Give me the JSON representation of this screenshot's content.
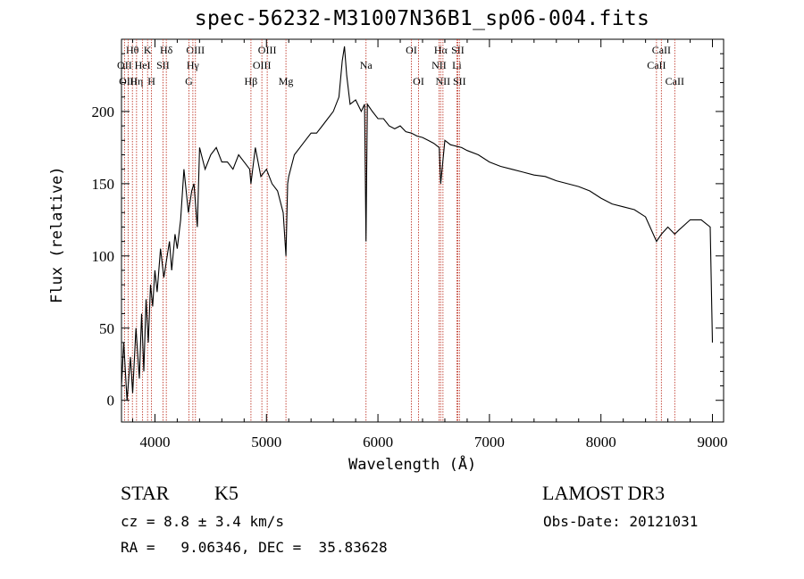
{
  "chart_data": {
    "type": "line",
    "title": "spec-56232-M31007N36B1_sp06-004.fits",
    "xlabel": "Wavelength (Å)",
    "ylabel": "Flux (relative)",
    "xlim": [
      3700,
      9100
    ],
    "ylim": [
      -15,
      250
    ],
    "xticks": [
      4000,
      5000,
      6000,
      7000,
      8000,
      9000
    ],
    "yticks": [
      0,
      50,
      100,
      150,
      200
    ],
    "series": [
      {
        "name": "flux",
        "x": [
          3700,
          3720,
          3750,
          3780,
          3800,
          3830,
          3860,
          3880,
          3900,
          3920,
          3940,
          3960,
          3980,
          4000,
          4020,
          4050,
          4080,
          4100,
          4130,
          4150,
          4180,
          4200,
          4230,
          4260,
          4300,
          4330,
          4350,
          4380,
          4400,
          4450,
          4500,
          4550,
          4600,
          4650,
          4700,
          4750,
          4800,
          4850,
          4861,
          4900,
          4950,
          5000,
          5050,
          5100,
          5150,
          5175,
          5190,
          5200,
          5250,
          5300,
          5350,
          5400,
          5450,
          5500,
          5550,
          5600,
          5650,
          5680,
          5700,
          5720,
          5750,
          5800,
          5850,
          5880,
          5893,
          5905,
          5950,
          6000,
          6050,
          6100,
          6150,
          6200,
          6250,
          6300,
          6350,
          6400,
          6450,
          6500,
          6550,
          6563,
          6600,
          6650,
          6700,
          6750,
          6800,
          6900,
          7000,
          7100,
          7200,
          7300,
          7400,
          7500,
          7600,
          7700,
          7800,
          7900,
          8000,
          8100,
          8200,
          8300,
          8400,
          8498,
          8542,
          8600,
          8662,
          8700,
          8800,
          8900,
          8980,
          9000
        ],
        "y": [
          10,
          40,
          0,
          30,
          5,
          50,
          15,
          60,
          20,
          70,
          40,
          80,
          65,
          90,
          75,
          105,
          85,
          95,
          110,
          90,
          115,
          105,
          125,
          160,
          130,
          145,
          150,
          120,
          175,
          160,
          170,
          175,
          165,
          165,
          160,
          170,
          165,
          160,
          150,
          175,
          155,
          160,
          150,
          145,
          130,
          100,
          150,
          155,
          170,
          175,
          180,
          185,
          185,
          190,
          195,
          200,
          210,
          235,
          245,
          225,
          205,
          208,
          200,
          205,
          110,
          205,
          200,
          195,
          195,
          190,
          188,
          190,
          186,
          185,
          183,
          182,
          180,
          178,
          175,
          150,
          180,
          177,
          176,
          175,
          173,
          170,
          165,
          162,
          160,
          158,
          156,
          155,
          152,
          150,
          148,
          145,
          140,
          136,
          134,
          132,
          127,
          110,
          115,
          120,
          115,
          118,
          125,
          125,
          120,
          40
        ]
      }
    ],
    "lines": [
      {
        "label": "Hθ",
        "wave": 3798,
        "row": 1
      },
      {
        "label": "OII",
        "wave": 3727,
        "row": 2
      },
      {
        "label": "OIII",
        "wave": 3760,
        "row": 3
      },
      {
        "label": "Hη",
        "wave": 3835,
        "row": 3
      },
      {
        "label": "K",
        "wave": 3934,
        "row": 1
      },
      {
        "label": "HeI",
        "wave": 3889,
        "row": 2
      },
      {
        "label": "SII",
        "wave": 4072,
        "row": 2
      },
      {
        "label": "H",
        "wave": 3969,
        "row": 3
      },
      {
        "label": "Hδ",
        "wave": 4102,
        "row": 1
      },
      {
        "label": "OIII",
        "wave": 4363,
        "row": 1
      },
      {
        "label": "Hγ",
        "wave": 4340,
        "row": 2
      },
      {
        "label": "G",
        "wave": 4305,
        "row": 3
      },
      {
        "label": "OIII",
        "wave": 5007,
        "row": 1
      },
      {
        "label": "OIII",
        "wave": 4959,
        "row": 2
      },
      {
        "label": "Hβ",
        "wave": 4861,
        "row": 3
      },
      {
        "label": "Mg",
        "wave": 5175,
        "row": 3
      },
      {
        "label": "Na",
        "wave": 5893,
        "row": 2
      },
      {
        "label": "OI",
        "wave": 6300,
        "row": 1
      },
      {
        "label": "OI",
        "wave": 6364,
        "row": 3
      },
      {
        "label": "Hα",
        "wave": 6563,
        "row": 1
      },
      {
        "label": "SII",
        "wave": 6716,
        "row": 1
      },
      {
        "label": "NII",
        "wave": 6548,
        "row": 2
      },
      {
        "label": "Li",
        "wave": 6708,
        "row": 2
      },
      {
        "label": "NII",
        "wave": 6583,
        "row": 3
      },
      {
        "label": "SII",
        "wave": 6731,
        "row": 3
      },
      {
        "label": "CaII",
        "wave": 8542,
        "row": 1
      },
      {
        "label": "CaII",
        "wave": 8498,
        "row": 2
      },
      {
        "label": "CaII",
        "wave": 8662,
        "row": 3
      }
    ]
  },
  "info": {
    "class": "STAR",
    "subclass": "K5",
    "survey": "LAMOST DR3",
    "cz": "cz = 8.8 ± 3.4 km/s",
    "obs_date": "Obs-Date: 20121031",
    "radec": "RA =   9.06346, DEC =  35.83628"
  }
}
